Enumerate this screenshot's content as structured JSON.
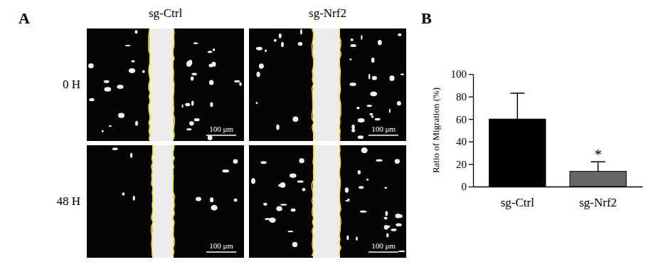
{
  "panel_labels": [
    "A",
    "B"
  ],
  "micrographs": {
    "columns": [
      "sg-Ctrl",
      "sg-Nrf2"
    ],
    "rows": [
      "0 H",
      "48 H"
    ],
    "scale_bar": "100 μm"
  },
  "chart_data": {
    "type": "bar",
    "y_label": "Ratio of Migration (%)",
    "categories": [
      "sg-Ctrl",
      "sg-Nrf2"
    ],
    "values": [
      60,
      13.5
    ],
    "errors": [
      23,
      8.5
    ],
    "colors": [
      "#000000",
      "#666666"
    ],
    "annotations": [
      {
        "x": "sg-Nrf2",
        "text": "*"
      }
    ],
    "ylim": [
      0,
      100
    ],
    "yticks": [
      0,
      20,
      40,
      60,
      80,
      100
    ]
  }
}
